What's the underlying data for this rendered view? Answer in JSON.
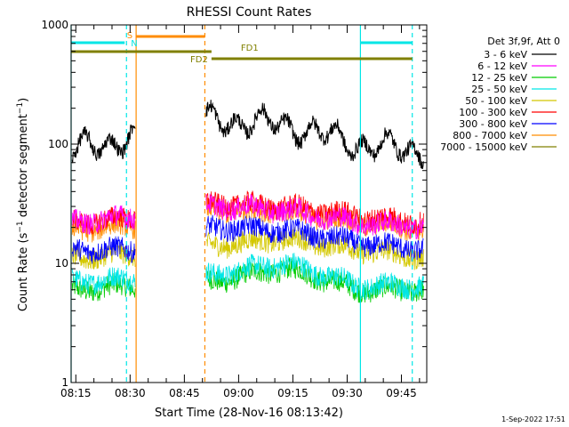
{
  "chart_data": {
    "type": "line",
    "title": "RHESSI Count Rates",
    "xlabel": "Start Time (28-Nov-16 08:13:42)",
    "ylabel_main": "Count Rate (s",
    "ylabel_sup1": "−1",
    "ylabel_mid": " detector segment",
    "ylabel_sup2": "−1",
    "ylabel_end": ")",
    "y_scale": "log",
    "ylim": [
      1,
      1000
    ],
    "xlim": [
      "08:13:42",
      "09:52:00"
    ],
    "x_ticks": [
      "08:15",
      "08:30",
      "08:45",
      "09:00",
      "09:15",
      "09:30",
      "09:45"
    ],
    "y_tick_labels": [
      "1",
      "10",
      "100",
      "1000"
    ],
    "legend_title": "Det 3f,9f, Att 0",
    "legend_position": "right",
    "series": [
      {
        "name": "3 - 6 keV",
        "color": "#000000",
        "typical": [
          85,
          120,
          160,
          145,
          100,
          85
        ]
      },
      {
        "name": "6 - 12 keV",
        "color": "#ff00ff",
        "typical": [
          22,
          25,
          30,
          28,
          22,
          20
        ]
      },
      {
        "name": "12 - 25 keV",
        "color": "#00cc00",
        "typical": [
          6,
          6.5,
          7,
          9,
          6,
          6
        ]
      },
      {
        "name": "25 - 50 keV",
        "color": "#00e6e6",
        "typical": [
          7,
          7.5,
          8,
          10,
          6.5,
          6.5
        ]
      },
      {
        "name": "50 - 100 keV",
        "color": "#d4c800",
        "typical": [
          11,
          12,
          14,
          16,
          13,
          11
        ]
      },
      {
        "name": "100 - 300 keV",
        "color": "#ff0000",
        "typical": [
          22,
          24,
          32,
          30,
          25,
          22
        ]
      },
      {
        "name": "300 - 800 keV",
        "color": "#0000ff",
        "typical": [
          13,
          13,
          20,
          19,
          15,
          13
        ]
      },
      {
        "name": "800 - 7000 keV",
        "color": "#ff8c00",
        "typical": [
          19,
          21,
          28,
          27,
          22,
          19
        ]
      },
      {
        "name": "7000 - 15000 keV",
        "color": "#808000",
        "typical": [
          null,
          null,
          null,
          null,
          null,
          null
        ]
      }
    ],
    "data_gap": [
      "08:31:40",
      "08:51:00"
    ],
    "flag_bars": [
      {
        "label": "S",
        "color": "#ff8c00",
        "start": "08:31:40",
        "end": "08:50:40",
        "level": "top"
      },
      {
        "label": "N",
        "color": "#00e6e6",
        "start": "08:13:42",
        "end": "08:28:30",
        "level": "upper"
      },
      {
        "label": "",
        "color": "#00e6e6",
        "start": "09:33:40",
        "end": "09:48:00",
        "level": "upper"
      },
      {
        "label": "FD1",
        "color": "#808000",
        "start": "08:13:42",
        "end": "08:52:30",
        "level": "middle"
      },
      {
        "label": "FD2",
        "color": "#808000",
        "start": "08:52:30",
        "end": "09:48:00",
        "level": "lower"
      }
    ],
    "vertical_markers": [
      {
        "time": "08:13:42",
        "color": "#00e6e6",
        "style": "solid"
      },
      {
        "time": "08:29:00",
        "color": "#00e6e6",
        "style": "dashed"
      },
      {
        "time": "08:31:40",
        "color": "#ff8c00",
        "style": "solid"
      },
      {
        "time": "08:50:40",
        "color": "#ff8c00",
        "style": "dashed"
      },
      {
        "time": "09:33:40",
        "color": "#00e6e6",
        "style": "solid"
      },
      {
        "time": "09:48:00",
        "color": "#00e6e6",
        "style": "dashed"
      }
    ]
  },
  "footer": {
    "date_stamp": "1-Sep-2022 17:51"
  }
}
